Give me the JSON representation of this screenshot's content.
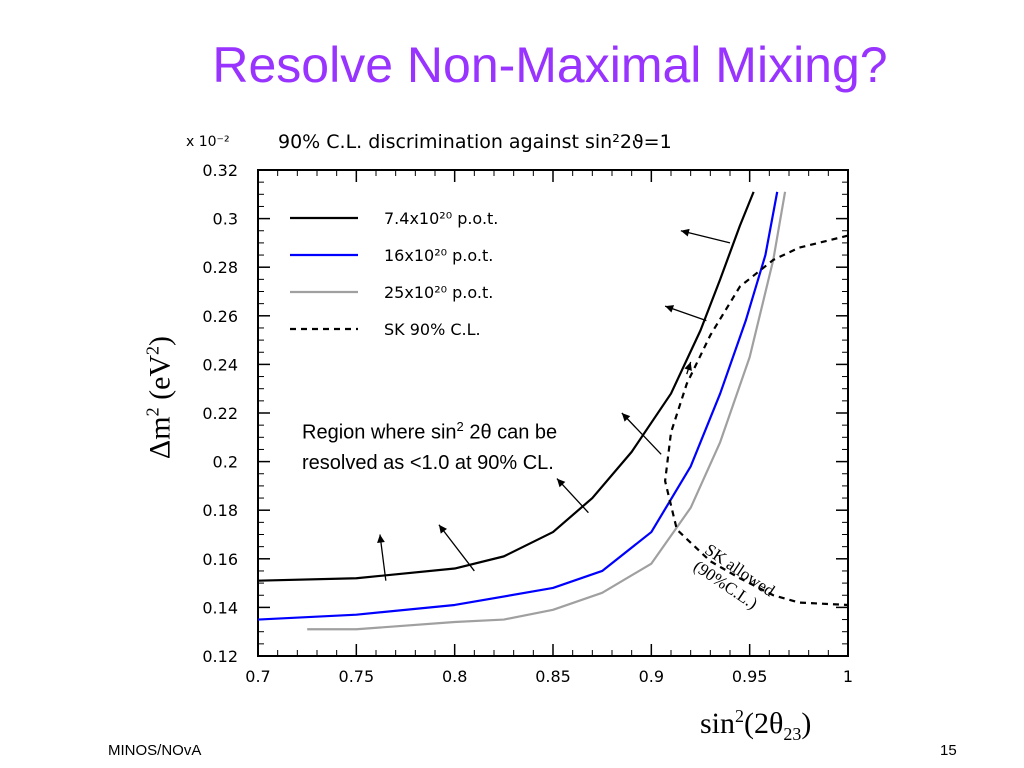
{
  "slide": {
    "title": "Resolve Non-Maximal Mixing?",
    "footer_left": "MINOS/NOvA",
    "footer_right": "15"
  },
  "chart_data": {
    "type": "line",
    "title": "90% C.L. discrimination against sin²2ϑ=1",
    "y_multiplier": "x 10⁻²",
    "xlabel_main": "sin",
    "xlabel_sup": "2",
    "xlabel_rest": "(2θ",
    "xlabel_sub": "23",
    "xlabel_end": ")",
    "ylabel_main": "Δm",
    "ylabel_sup": "2",
    "ylabel_rest": " (eV",
    "ylabel_sup2": "2",
    "ylabel_end": ")",
    "xlim": [
      0.7,
      1.0
    ],
    "ylim": [
      0.12,
      0.32
    ],
    "x_ticks": [
      "0.7",
      "0.75",
      "0.8",
      "0.85",
      "0.9",
      "0.95",
      "1"
    ],
    "y_ticks": [
      "0.12",
      "0.14",
      "0.16",
      "0.18",
      "0.2",
      "0.22",
      "0.24",
      "0.26",
      "0.28",
      "0.3",
      "0.32"
    ],
    "legend_position": "top-left",
    "series": [
      {
        "name": "7.4x10²⁰ p.o.t.",
        "color": "#000000",
        "dash": "solid",
        "x": [
          0.7,
          0.75,
          0.8,
          0.825,
          0.85,
          0.87,
          0.89,
          0.91,
          0.925,
          0.935,
          0.945,
          0.952
        ],
        "y": [
          0.151,
          0.152,
          0.156,
          0.161,
          0.171,
          0.185,
          0.204,
          0.228,
          0.254,
          0.275,
          0.297,
          0.311
        ]
      },
      {
        "name": "16x10²⁰ p.o.t.",
        "color": "#0000ff",
        "dash": "solid",
        "x": [
          0.7,
          0.75,
          0.8,
          0.85,
          0.875,
          0.9,
          0.92,
          0.935,
          0.948,
          0.958,
          0.964
        ],
        "y": [
          0.135,
          0.137,
          0.141,
          0.148,
          0.155,
          0.171,
          0.198,
          0.228,
          0.258,
          0.285,
          0.311
        ]
      },
      {
        "name": "25x10²⁰ p.o.t.",
        "color": "#a0a0a0",
        "dash": "solid",
        "x": [
          0.725,
          0.75,
          0.8,
          0.825,
          0.85,
          0.875,
          0.9,
          0.92,
          0.935,
          0.95,
          0.962,
          0.968
        ],
        "y": [
          0.131,
          0.131,
          0.134,
          0.135,
          0.139,
          0.146,
          0.158,
          0.181,
          0.208,
          0.243,
          0.283,
          0.311
        ]
      },
      {
        "name": "SK 90% C.L.",
        "color": "#000000",
        "dash": "dashed",
        "x": [
          1.0,
          0.975,
          0.962,
          0.945,
          0.93,
          0.918,
          0.91,
          0.907,
          0.913,
          0.93,
          0.945,
          0.962,
          0.975,
          1.0
        ],
        "y": [
          0.293,
          0.288,
          0.283,
          0.272,
          0.252,
          0.232,
          0.212,
          0.192,
          0.172,
          0.159,
          0.152,
          0.145,
          0.142,
          0.141
        ]
      }
    ],
    "arrows": [
      {
        "from": [
          0.765,
          0.151
        ],
        "to": [
          0.762,
          0.17
        ]
      },
      {
        "from": [
          0.81,
          0.155
        ],
        "to": [
          0.792,
          0.174
        ]
      },
      {
        "from": [
          0.868,
          0.179
        ],
        "to": [
          0.852,
          0.193
        ]
      },
      {
        "from": [
          0.905,
          0.203
        ],
        "to": [
          0.885,
          0.22
        ]
      },
      {
        "from": [
          0.918,
          0.236
        ],
        "to": [
          0.92,
          0.241
        ]
      },
      {
        "from": [
          0.928,
          0.258
        ],
        "to": [
          0.907,
          0.264
        ]
      },
      {
        "from": [
          0.94,
          0.29
        ],
        "to": [
          0.915,
          0.295
        ]
      }
    ],
    "annotations": {
      "region_line1_a": "Region where sin",
      "region_line1_sup": "2",
      "region_line1_b": " 2θ can be",
      "region_line2": "resolved as <1.0 at 90% CL.",
      "sk_allowed": "SK allowed (90%C.L.)"
    }
  }
}
